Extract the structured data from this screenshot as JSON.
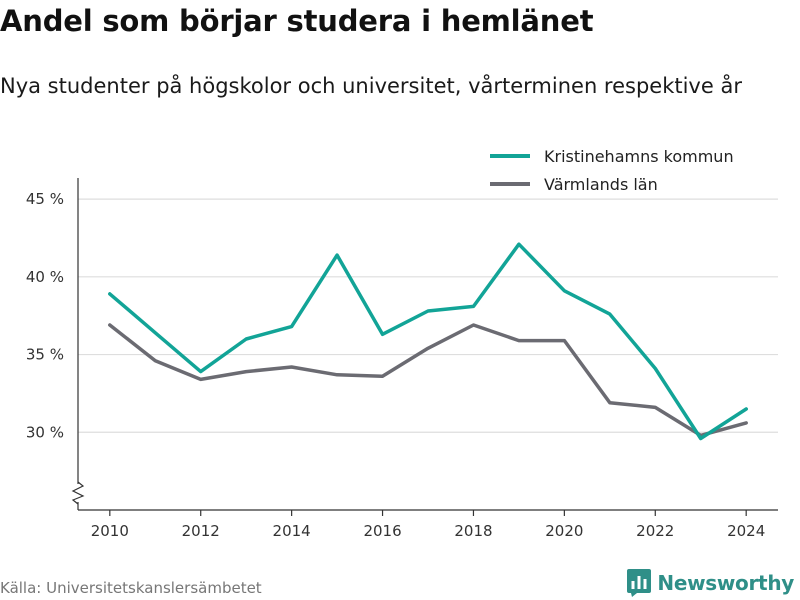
{
  "title": "Andel som börjar studera i hemlänet",
  "subtitle": "Nya studenter på högskolor och universitet, vårterminen respektive år",
  "source": "Källa: Universitetskanslersämbetet",
  "brand": {
    "name": "Newsworthy",
    "color": "#2f8f88",
    "icon": "newsworthy-logo-icon"
  },
  "chart_data": {
    "type": "line",
    "title": "Andel som börjar studera i hemlänet",
    "subtitle": "Nya studenter på högskolor och universitet, vårterminen respektive år",
    "xlabel": "",
    "ylabel": "",
    "x": [
      2010,
      2011,
      2012,
      2013,
      2014,
      2015,
      2016,
      2017,
      2018,
      2019,
      2020,
      2021,
      2022,
      2023,
      2024
    ],
    "x_ticks": [
      2010,
      2012,
      2014,
      2016,
      2018,
      2020,
      2022,
      2024
    ],
    "x_tick_labels": [
      "2010",
      "2012",
      "2014",
      "2016",
      "2018",
      "2020",
      "2022",
      "2024"
    ],
    "y_ticks": [
      30,
      35,
      40,
      45
    ],
    "y_tick_labels": [
      "30 %",
      "35 %",
      "40 %",
      "45 %"
    ],
    "ylim": [
      25,
      47
    ],
    "xlim": [
      2009.3,
      2024.7
    ],
    "axis_break": true,
    "grid": "horizontal",
    "legend_position": "top-right",
    "series": [
      {
        "name": "Kristinehamns kommun",
        "color": "#12a497",
        "values": [
          38.9,
          36.4,
          33.9,
          36.0,
          36.8,
          41.4,
          36.3,
          37.8,
          38.1,
          42.1,
          39.1,
          37.6,
          34.1,
          29.6,
          31.5
        ]
      },
      {
        "name": "Värmlands län",
        "color": "#6b6b72",
        "values": [
          36.9,
          34.6,
          33.4,
          33.9,
          34.2,
          33.7,
          33.6,
          35.4,
          36.9,
          35.9,
          35.9,
          31.9,
          31.6,
          29.8,
          30.6
        ]
      }
    ]
  }
}
